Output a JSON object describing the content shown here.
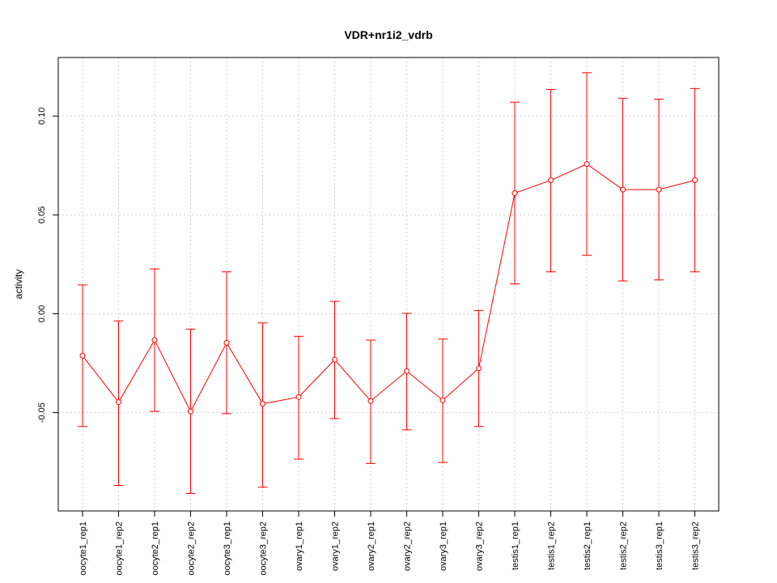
{
  "chart_data": {
    "type": "line",
    "title": "VDR+nr1i2_vdrb",
    "xlabel": "",
    "ylabel": "activity",
    "categories": [
      "oocyte1_rep1",
      "oocyte1_rep2",
      "oocyte2_rep1",
      "oocyte2_rep2",
      "oocyte3_rep1",
      "oocyte3_rep2",
      "ovary1_rep1",
      "ovary1_rep2",
      "ovary2_rep1",
      "ovary2_rep2",
      "ovary3_rep1",
      "ovary3_rep2",
      "testis1_rep1",
      "testis1_rep2",
      "testis2_rep1",
      "testis2_rep2",
      "testis3_rep1",
      "testis3_rep2"
    ],
    "series": [
      {
        "values": [
          -0.0212,
          -0.0447,
          -0.0133,
          -0.0494,
          -0.0147,
          -0.0455,
          -0.0421,
          -0.0232,
          -0.0441,
          -0.029,
          -0.0437,
          -0.0276,
          0.061,
          0.0675,
          0.0757,
          0.0628,
          0.0628,
          0.0675
        ],
        "err_low": [
          -0.057,
          -0.0868,
          -0.0494,
          -0.0909,
          -0.0505,
          -0.0877,
          -0.0735,
          -0.053,
          -0.0757,
          -0.0587,
          -0.0752,
          -0.057,
          0.0151,
          0.0212,
          0.0296,
          0.0166,
          0.0171,
          0.0212
        ],
        "err_high": [
          0.0146,
          -0.0036,
          0.0227,
          -0.0078,
          0.0212,
          -0.0046,
          -0.0114,
          0.0063,
          -0.0133,
          0.0002,
          -0.0128,
          0.0017,
          0.107,
          0.1134,
          0.1219,
          0.109,
          0.1085,
          0.1139
        ]
      }
    ],
    "ylim": [
      -0.0997,
      0.1296
    ],
    "yticks": [
      -0.05,
      0.0,
      0.05,
      0.1
    ],
    "ytick_labels": [
      "-0.05",
      "0.00",
      "0.05",
      "0.10"
    ],
    "grid": true,
    "colors": {
      "series": "#ff0000",
      "grid": "#d3d3d3",
      "axis": "#000000"
    }
  }
}
